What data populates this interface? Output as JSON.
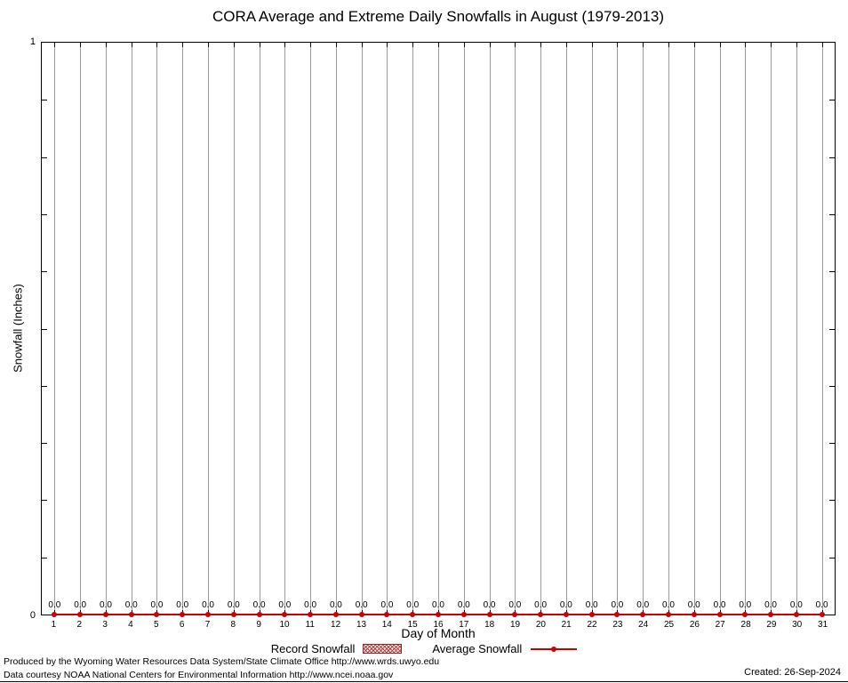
{
  "chart_data": {
    "type": "line",
    "title": "CORA Average and Extreme Daily Snowfalls in August (1979-2013)",
    "xlabel": "Day of Month",
    "ylabel": "Snowfall (Inches)",
    "x": [
      1,
      2,
      3,
      4,
      5,
      6,
      7,
      8,
      9,
      10,
      11,
      12,
      13,
      14,
      15,
      16,
      17,
      18,
      19,
      20,
      21,
      22,
      23,
      24,
      25,
      26,
      27,
      28,
      29,
      30,
      31
    ],
    "series": [
      {
        "name": "Record Snowfall",
        "style": "hatched-box",
        "color": "#aa4444",
        "values": [
          0.0,
          0.0,
          0.0,
          0.0,
          0.0,
          0.0,
          0.0,
          0.0,
          0.0,
          0.0,
          0.0,
          0.0,
          0.0,
          0.0,
          0.0,
          0.0,
          0.0,
          0.0,
          0.0,
          0.0,
          0.0,
          0.0,
          0.0,
          0.0,
          0.0,
          0.0,
          0.0,
          0.0,
          0.0,
          0.0,
          0.0
        ]
      },
      {
        "name": "Average Snowfall",
        "style": "line-with-points",
        "color": "#cc0000",
        "values": [
          0.0,
          0.0,
          0.0,
          0.0,
          0.0,
          0.0,
          0.0,
          0.0,
          0.0,
          0.0,
          0.0,
          0.0,
          0.0,
          0.0,
          0.0,
          0.0,
          0.0,
          0.0,
          0.0,
          0.0,
          0.0,
          0.0,
          0.0,
          0.0,
          0.0,
          0.0,
          0.0,
          0.0,
          0.0,
          0.0,
          0.0
        ]
      }
    ],
    "value_labels": [
      "0.0",
      "0.0",
      "0.0",
      "0.0",
      "0.0",
      "0.0",
      "0.0",
      "0.0",
      "0.0",
      "0.0",
      "0.0",
      "0.0",
      "0.0",
      "0.0",
      "0.0",
      "0.0",
      "0.0",
      "0.0",
      "0.0",
      "0.0",
      "0.0",
      "0.0",
      "0.0",
      "0.0",
      "0.0",
      "0.0",
      "0.0",
      "0.0",
      "0.0",
      "0.0",
      "0.0"
    ],
    "ylim": [
      0,
      1
    ],
    "xlim": [
      0.5,
      31.5
    ],
    "yticks": {
      "top": "1",
      "bottom": "0"
    },
    "grid": "vertical-day-lines",
    "legend_position": "bottom-center"
  },
  "colors": {
    "grid": "#9b9b9b",
    "axis": "#000000",
    "series_red": "#cc0000",
    "hatch_red": "#aa4444"
  },
  "footer": {
    "line1": "Produced by the Wyoming Water Resources Data System/State Climate Office http://www.wrds.uwyo.edu",
    "line2": "Data courtesy NOAA National Centers for Environmental Information http://www.ncei.noaa.gov",
    "created": "Created: 26-Sep-2024"
  }
}
